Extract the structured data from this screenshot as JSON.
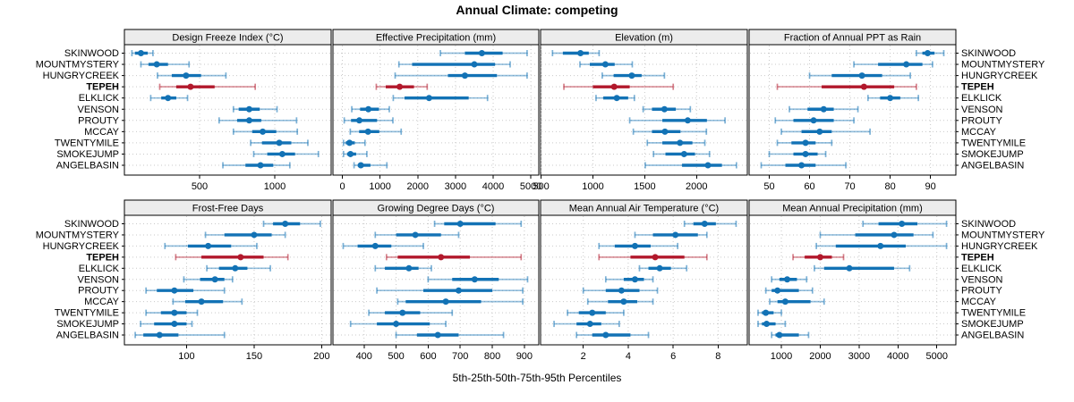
{
  "title": "Annual Climate: competing",
  "caption": "5th-25th-50th-75th-95th Percentiles",
  "sites": [
    "SKINWOOD",
    "MOUNTMYSTERY",
    "HUNGRYCREEK",
    "TEPEH",
    "ELKLICK",
    "VENSON",
    "PROUTY",
    "MCCAY",
    "TWENTYMILE",
    "SMOKEJUMP",
    "ANGELBASIN"
  ],
  "highlight_site": "TEPEH",
  "percentiles": [
    "5th",
    "25th",
    "50th",
    "75th",
    "95th"
  ],
  "colors": {
    "series": "#1272B5",
    "highlight": "#B2182B",
    "strip_bg": "#ECECEC",
    "grid": "#C9C9C9",
    "border": "#000000",
    "text": "#000000"
  },
  "chart_data": {
    "type": "dot-whisker-lattice",
    "layout": {
      "rows": 2,
      "cols": 4,
      "grid": "dashed",
      "legend": "none"
    },
    "panels": [
      {
        "title": "Design Freeze Index (°C)",
        "row": 0,
        "col": 0,
        "xlim": [
          0,
          1375
        ],
        "xticks": [
          500,
          1000
        ],
        "data": [
          [
            50,
            70,
            110,
            155,
            190
          ],
          [
            110,
            160,
            215,
            290,
            430
          ],
          [
            220,
            315,
            410,
            510,
            675
          ],
          [
            235,
            345,
            440,
            600,
            870
          ],
          [
            175,
            245,
            290,
            345,
            420
          ],
          [
            725,
            760,
            830,
            900,
            1015
          ],
          [
            630,
            750,
            830,
            910,
            1145
          ],
          [
            725,
            850,
            920,
            1010,
            1150
          ],
          [
            840,
            915,
            1030,
            1110,
            1220
          ],
          [
            860,
            950,
            1050,
            1135,
            1290
          ],
          [
            655,
            805,
            905,
            990,
            1100
          ]
        ]
      },
      {
        "title": "Effective Precipitation (mm)",
        "row": 0,
        "col": 1,
        "xlim": [
          -250,
          5210
        ],
        "xticks": [
          0,
          1000,
          2000,
          3000,
          4000,
          5000
        ],
        "data": [
          [
            2600,
            3250,
            3700,
            4250,
            4900
          ],
          [
            1500,
            1850,
            3500,
            4050,
            4450
          ],
          [
            1400,
            2800,
            3250,
            4100,
            4900
          ],
          [
            900,
            1150,
            1520,
            1900,
            2250
          ],
          [
            1350,
            1650,
            2300,
            3350,
            3850
          ],
          [
            250,
            470,
            690,
            970,
            1245
          ],
          [
            50,
            230,
            450,
            920,
            1340
          ],
          [
            210,
            445,
            680,
            980,
            1560
          ],
          [
            30,
            90,
            190,
            330,
            600
          ],
          [
            30,
            125,
            215,
            365,
            650
          ],
          [
            310,
            410,
            490,
            745,
            1180
          ]
        ]
      },
      {
        "title": "Elevation (m)",
        "row": 0,
        "col": 2,
        "xlim": [
          495,
          2490
        ],
        "xticks": [
          500,
          1000,
          1500,
          2000
        ],
        "data": [
          [
            610,
            710,
            880,
            960,
            1060
          ],
          [
            875,
            970,
            1120,
            1210,
            1380
          ],
          [
            1090,
            1200,
            1375,
            1470,
            1690
          ],
          [
            720,
            1000,
            1205,
            1355,
            1775
          ],
          [
            1030,
            1100,
            1230,
            1340,
            1400
          ],
          [
            1485,
            1570,
            1690,
            1800,
            1940
          ],
          [
            1355,
            1670,
            1915,
            2100,
            2275
          ],
          [
            1390,
            1570,
            1695,
            1845,
            2095
          ],
          [
            1525,
            1670,
            1840,
            1960,
            2080
          ],
          [
            1585,
            1700,
            1880,
            1985,
            2125
          ],
          [
            1505,
            1860,
            2110,
            2245,
            2385
          ]
        ]
      },
      {
        "title": "Fraction of Annual PPT as Rain",
        "row": 0,
        "col": 3,
        "xlim": [
          45,
          96.3
        ],
        "xticks": [
          50,
          60,
          70,
          80,
          90
        ],
        "data": [
          [
            86.5,
            88,
            89.3,
            91,
            93.3
          ],
          [
            71,
            77,
            84,
            88,
            90.5
          ],
          [
            60,
            65.5,
            73,
            78,
            85
          ],
          [
            52,
            63,
            73.5,
            81,
            86.5
          ],
          [
            74.5,
            77.5,
            80,
            82.5,
            87
          ],
          [
            55,
            59.5,
            63.5,
            66,
            72
          ],
          [
            51.5,
            56,
            61,
            66,
            71
          ],
          [
            53,
            58,
            62.5,
            65.5,
            75
          ],
          [
            52,
            55.5,
            59,
            61.5,
            65.5
          ],
          [
            50,
            56,
            59,
            62,
            64
          ],
          [
            48,
            54,
            58,
            61.5,
            69
          ]
        ]
      },
      {
        "title": "Frost-Free Days",
        "row": 1,
        "col": 0,
        "xlim": [
          54,
          207
        ],
        "xticks": [
          100,
          150,
          200
        ],
        "data": [
          [
            157,
            164,
            173,
            184,
            199
          ],
          [
            114,
            128,
            150,
            163,
            173
          ],
          [
            84,
            101,
            116,
            133,
            152
          ],
          [
            92,
            111,
            140,
            157,
            175
          ],
          [
            115,
            124,
            136,
            145,
            162
          ],
          [
            98,
            110,
            121,
            128,
            134
          ],
          [
            70,
            78,
            91,
            105,
            128
          ],
          [
            90,
            99,
            111,
            127,
            141
          ],
          [
            70,
            81,
            91,
            100,
            108
          ],
          [
            66,
            76,
            91,
            100,
            104
          ],
          [
            62,
            68,
            80,
            94,
            128
          ]
        ]
      },
      {
        "title": "Growing Degree Days (°C)",
        "row": 1,
        "col": 1,
        "xlim": [
          303,
          945
        ],
        "xticks": [
          400,
          500,
          600,
          700,
          800,
          900
        ],
        "data": [
          [
            620,
            650,
            700,
            810,
            890
          ],
          [
            435,
            500,
            560,
            640,
            695
          ],
          [
            335,
            380,
            435,
            485,
            585
          ],
          [
            470,
            505,
            640,
            730,
            890
          ],
          [
            435,
            465,
            540,
            570,
            610
          ],
          [
            600,
            675,
            745,
            820,
            910
          ],
          [
            440,
            585,
            695,
            800,
            895
          ],
          [
            505,
            530,
            655,
            765,
            895
          ],
          [
            415,
            465,
            520,
            575,
            675
          ],
          [
            358,
            440,
            500,
            605,
            655
          ],
          [
            500,
            565,
            630,
            695,
            835
          ]
        ]
      },
      {
        "title": "Mean Annual Air Temperature (°C)",
        "row": 1,
        "col": 2,
        "xlim": [
          0.1,
          9.3
        ],
        "xticks": [
          2,
          4,
          6,
          8
        ],
        "data": [
          [
            6.5,
            6.9,
            7.4,
            7.9,
            8.8
          ],
          [
            4.3,
            5.1,
            6.1,
            7.1,
            7.5
          ],
          [
            2.7,
            3.4,
            4.3,
            5.0,
            6.2
          ],
          [
            2.7,
            4.1,
            5.2,
            6.5,
            7.5
          ],
          [
            4.5,
            4.9,
            5.4,
            5.9,
            6.6
          ],
          [
            3.0,
            3.8,
            4.3,
            4.7,
            5.1
          ],
          [
            2.0,
            3.0,
            3.7,
            4.5,
            5.3
          ],
          [
            2.2,
            3.1,
            3.8,
            4.4,
            5.1
          ],
          [
            1.3,
            1.8,
            2.4,
            3.0,
            3.8
          ],
          [
            0.7,
            1.7,
            2.3,
            2.8,
            3.6
          ],
          [
            1.7,
            2.4,
            3.0,
            4.1,
            4.9
          ]
        ]
      },
      {
        "title": "Mean Annual Precipitation (mm)",
        "row": 1,
        "col": 3,
        "xlim": [
          170,
          5490
        ],
        "xticks": [
          1000,
          2000,
          3000,
          4000,
          5000
        ],
        "data": [
          [
            3100,
            3500,
            4100,
            4500,
            5250
          ],
          [
            2000,
            2900,
            3900,
            4400,
            4900
          ],
          [
            1900,
            2400,
            3550,
            4200,
            5250
          ],
          [
            1300,
            1600,
            2000,
            2300,
            2600
          ],
          [
            1850,
            2100,
            2750,
            3900,
            4300
          ],
          [
            750,
            950,
            1150,
            1400,
            1650
          ],
          [
            600,
            750,
            900,
            1450,
            1800
          ],
          [
            700,
            900,
            1100,
            1750,
            2100
          ],
          [
            400,
            500,
            600,
            800,
            1000
          ],
          [
            400,
            500,
            620,
            850,
            1100
          ],
          [
            750,
            850,
            950,
            1450,
            1700
          ]
        ]
      }
    ]
  }
}
